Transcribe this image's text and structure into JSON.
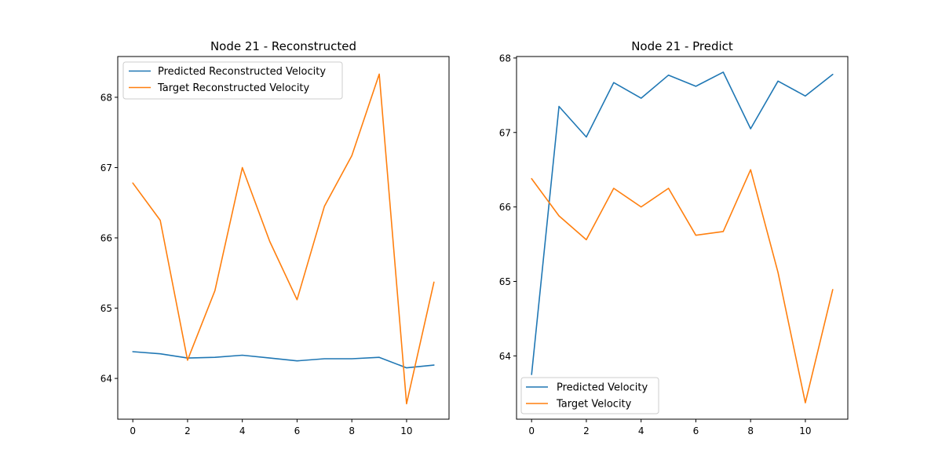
{
  "colors": {
    "blue": "#1f77b4",
    "orange": "#ff7f0e"
  },
  "chart_data": [
    {
      "type": "line",
      "title": "Node 21 - Reconstructed",
      "xlabel": "",
      "ylabel": "",
      "x": [
        0,
        1,
        2,
        3,
        4,
        5,
        6,
        7,
        8,
        9,
        10,
        11
      ],
      "xlim": [
        -0.55,
        11.55
      ],
      "ylim": [
        63.42,
        68.58
      ],
      "xticks": [
        "0",
        "2",
        "4",
        "6",
        "8",
        "10"
      ],
      "yticks": [
        "64",
        "65",
        "66",
        "67",
        "68"
      ],
      "legend_position": "upper-left",
      "grid": false,
      "series": [
        {
          "name": "Predicted Reconstructed Velocity",
          "color": "#1f77b4",
          "values": [
            64.38,
            64.35,
            64.29,
            64.3,
            64.33,
            64.29,
            64.25,
            64.28,
            64.28,
            64.3,
            64.15,
            64.19
          ]
        },
        {
          "name": "Target Reconstructed Velocity",
          "color": "#ff7f0e",
          "values": [
            66.78,
            66.25,
            64.26,
            65.25,
            67.0,
            65.95,
            65.12,
            66.45,
            67.17,
            68.33,
            63.64,
            65.37
          ]
        }
      ]
    },
    {
      "type": "line",
      "title": "Node 21 - Predict",
      "xlabel": "",
      "ylabel": "",
      "x": [
        0,
        1,
        2,
        3,
        4,
        5,
        6,
        7,
        8,
        9,
        10,
        11
      ],
      "xlim": [
        -0.55,
        11.55
      ],
      "ylim": [
        63.15,
        68.02
      ],
      "xticks": [
        "0",
        "2",
        "4",
        "6",
        "8",
        "10"
      ],
      "yticks": [
        "64",
        "65",
        "66",
        "67",
        "68"
      ],
      "legend_position": "lower-left",
      "grid": false,
      "series": [
        {
          "name": "Predicted Velocity",
          "color": "#1f77b4",
          "values": [
            63.75,
            67.35,
            66.94,
            67.67,
            67.46,
            67.77,
            67.62,
            67.81,
            67.05,
            67.69,
            67.49,
            67.78
          ]
        },
        {
          "name": "Target Velocity",
          "color": "#ff7f0e",
          "values": [
            66.38,
            65.88,
            65.56,
            66.25,
            66.0,
            66.25,
            65.62,
            65.67,
            66.5,
            65.12,
            63.37,
            64.89
          ]
        }
      ]
    }
  ]
}
